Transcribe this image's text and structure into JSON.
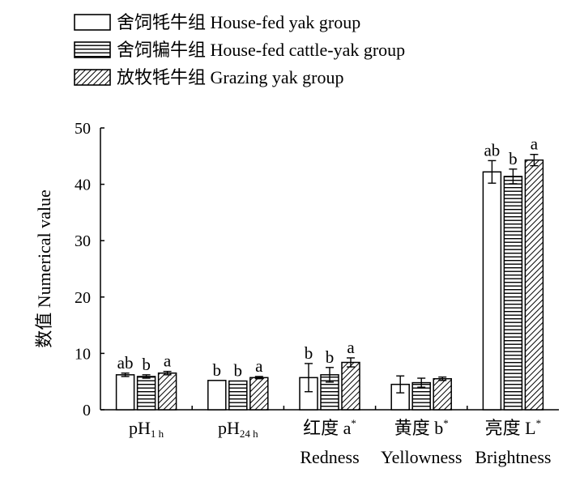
{
  "chart_data": {
    "type": "bar",
    "ylabel": "数值 Numerical value",
    "ylim": [
      0,
      50
    ],
    "yticks": [
      0,
      10,
      20,
      30,
      40,
      50
    ],
    "grid": false,
    "legend_position": "top-left",
    "categories": [
      {
        "main": "pH",
        "sub": "1 h",
        "cn": "",
        "sym": "",
        "sup": "",
        "en": ""
      },
      {
        "main": "pH",
        "sub": "24 h",
        "cn": "",
        "sym": "",
        "sup": "",
        "en": ""
      },
      {
        "main": "",
        "sub": "",
        "cn": "红度",
        "sym": "a",
        "sup": "*",
        "en": "Redness"
      },
      {
        "main": "",
        "sub": "",
        "cn": "黄度",
        "sym": "b",
        "sup": "*",
        "en": "Yellowness"
      },
      {
        "main": "",
        "sub": "",
        "cn": "亮度",
        "sym": "L",
        "sup": "*",
        "en": "Brightness"
      }
    ],
    "series": [
      {
        "name": "舍饲牦牛组 House-fed yak group",
        "pattern": "none",
        "values": [
          6.2,
          5.2,
          5.7,
          4.5,
          42.2
        ],
        "errors": [
          0.3,
          0.0,
          2.5,
          1.5,
          2.0
        ],
        "letters": [
          "ab",
          "b",
          "b",
          "",
          "ab"
        ]
      },
      {
        "name": "舍饲犏牛组 House-fed cattle-yak group",
        "pattern": "horizontal",
        "values": [
          5.9,
          5.1,
          6.2,
          4.8,
          41.4
        ],
        "errors": [
          0.3,
          0.0,
          1.3,
          0.8,
          1.3
        ],
        "letters": [
          "b",
          "b",
          "b",
          "",
          "b"
        ]
      },
      {
        "name": "放牧牦牛组 Grazing yak group",
        "pattern": "diagonal",
        "values": [
          6.5,
          5.7,
          8.4,
          5.5,
          44.3
        ],
        "errors": [
          0.3,
          0.2,
          0.8,
          0.3,
          1.0
        ],
        "letters": [
          "a",
          "a",
          "a",
          "",
          "a"
        ]
      }
    ]
  },
  "legend": {
    "items": [
      {
        "label": "舍饲牦牛组  House-fed yak group",
        "pattern": "none"
      },
      {
        "label": "舍饲犏牛组  House-fed cattle-yak group",
        "pattern": "horizontal"
      },
      {
        "label": "放牧牦牛组  Grazing yak group",
        "pattern": "diagonal"
      }
    ]
  }
}
